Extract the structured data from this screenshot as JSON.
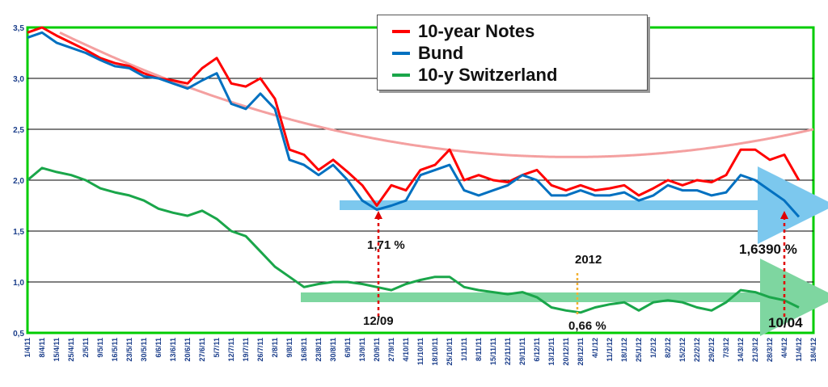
{
  "colors": {
    "plot_background": "#ffffff",
    "frame": "#00cc00",
    "gridline": "#000000",
    "notes": "#ff0000",
    "bund": "#0070c0",
    "switzerland": "#1aa64a",
    "trend_curve": "#f4a0a0",
    "arrow_blue": "#7cc8ee",
    "arrow_green": "#7ed6a0",
    "marker_red": "#e00000",
    "marker_orange": "#f2b134"
  },
  "annotations": {
    "low_notes_value": "1,71 %",
    "low_date": "12/09",
    "year_label": "2012",
    "swiss_low": "0,66 %",
    "bund_low": "1,6390 %",
    "last_date": "10/04"
  },
  "chart_data": {
    "type": "line",
    "title": "",
    "xlabel": "",
    "ylabel": "",
    "ylim": [
      0.5,
      3.5
    ],
    "yticks": [
      "0,5",
      "1,0",
      "1,5",
      "2,0",
      "2,5",
      "3,0",
      "3,5"
    ],
    "ytick_values": [
      0.5,
      1.0,
      1.5,
      2.0,
      2.5,
      3.0,
      3.5
    ],
    "grid": true,
    "legend_position": "top-center",
    "x_labels": [
      "1/4/11",
      "8/4/11",
      "15/4/11",
      "25/4/11",
      "2/5/11",
      "9/5/11",
      "16/5/11",
      "23/5/11",
      "30/5/11",
      "6/6/11",
      "13/6/11",
      "20/6/11",
      "27/6/11",
      "5/7/11",
      "12/7/11",
      "19/7/11",
      "26/7/11",
      "2/8/11",
      "9/8/11",
      "16/8/11",
      "23/8/11",
      "30/8/11",
      "6/9/11",
      "13/9/11",
      "20/9/11",
      "27/9/11",
      "4/10/11",
      "11/10/11",
      "18/10/11",
      "25/10/11",
      "1/11/11",
      "8/11/11",
      "15/11/11",
      "22/11/11",
      "29/11/11",
      "6/12/11",
      "13/12/11",
      "20/12/11",
      "28/12/11",
      "4/1/12",
      "11/1/12",
      "18/1/12",
      "25/1/12",
      "1/2/12",
      "8/2/12",
      "15/2/12",
      "22/2/12",
      "29/2/12",
      "7/3/12",
      "14/3/12",
      "21/3/12",
      "28/3/12",
      "4/4/12",
      "11/4/12",
      "18/4/12"
    ],
    "series": [
      {
        "name": "10-year Notes",
        "values": [
          3.45,
          3.5,
          3.42,
          3.35,
          3.28,
          3.2,
          3.15,
          3.12,
          3.05,
          3.0,
          2.98,
          2.95,
          3.1,
          3.2,
          2.95,
          2.92,
          3.0,
          2.8,
          2.3,
          2.25,
          2.1,
          2.2,
          2.08,
          1.95,
          1.75,
          1.95,
          1.9,
          2.1,
          2.15,
          2.3,
          2.0,
          2.05,
          2.0,
          1.98,
          2.05,
          2.1,
          1.95,
          1.9,
          1.95,
          1.9,
          1.92,
          1.95,
          1.85,
          1.92,
          2.0,
          1.95,
          2.0,
          1.98,
          2.05,
          2.3,
          2.3,
          2.2,
          2.25,
          2.0,
          null
        ]
      },
      {
        "name": "Bund",
        "values": [
          3.4,
          3.45,
          3.35,
          3.3,
          3.25,
          3.18,
          3.12,
          3.1,
          3.02,
          3.0,
          2.95,
          2.9,
          2.98,
          3.05,
          2.75,
          2.7,
          2.85,
          2.7,
          2.2,
          2.15,
          2.05,
          2.15,
          2.0,
          1.8,
          1.71,
          1.75,
          1.8,
          2.05,
          2.1,
          2.15,
          1.9,
          1.85,
          1.9,
          1.95,
          2.05,
          2.0,
          1.85,
          1.85,
          1.9,
          1.85,
          1.85,
          1.88,
          1.8,
          1.85,
          1.95,
          1.9,
          1.9,
          1.85,
          1.88,
          2.05,
          2.0,
          1.9,
          1.8,
          1.64,
          null
        ]
      },
      {
        "name": "10-y Switzerland",
        "values": [
          2.0,
          2.12,
          2.08,
          2.05,
          2.0,
          1.92,
          1.88,
          1.85,
          1.8,
          1.72,
          1.68,
          1.65,
          1.7,
          1.62,
          1.5,
          1.45,
          1.3,
          1.15,
          1.05,
          0.95,
          0.98,
          1.0,
          1.0,
          0.98,
          0.95,
          0.92,
          0.98,
          1.02,
          1.05,
          1.05,
          0.95,
          0.92,
          0.9,
          0.88,
          0.9,
          0.85,
          0.75,
          0.72,
          0.7,
          0.75,
          0.78,
          0.8,
          0.72,
          0.8,
          0.82,
          0.8,
          0.75,
          0.72,
          0.8,
          0.92,
          0.9,
          0.85,
          0.82,
          0.75,
          null
        ]
      }
    ]
  }
}
